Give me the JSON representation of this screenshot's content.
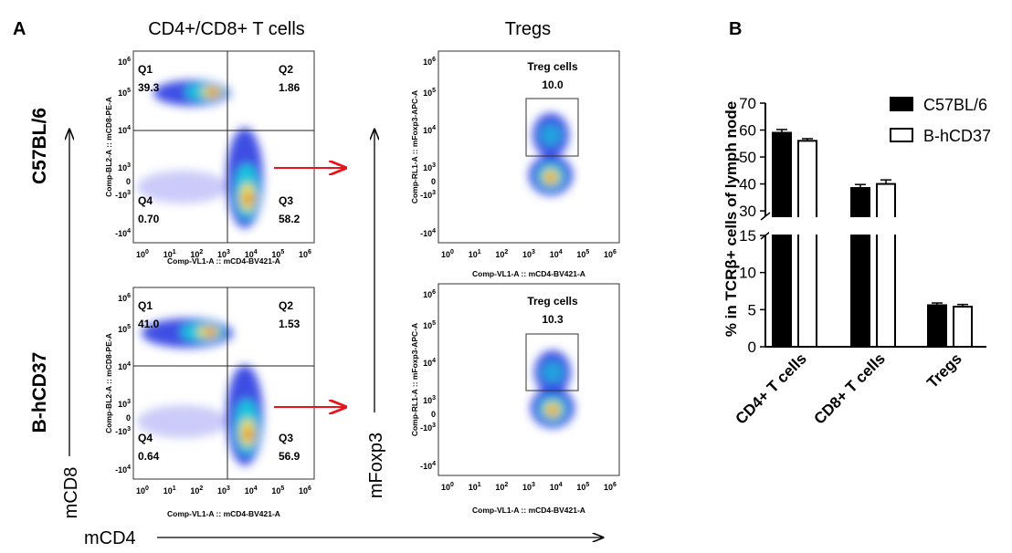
{
  "panel_labels": {
    "a": "A",
    "b": "B"
  },
  "headers": {
    "cd4cd8": "CD4+/CD8+ T cells",
    "tregs": "Tregs"
  },
  "row_labels": {
    "top": "C57BL/6",
    "bottom": "B-hCD37"
  },
  "big_axes": {
    "y_cd8": "mCD8",
    "y_foxp3": "mFoxp3",
    "x_cd4": "mCD4"
  },
  "flow": {
    "xlabel": "Comp-VL1-A :: mCD4-BV421-A",
    "ylabel_cd8": "Comp-BL2-A :: mCD8-PE-A",
    "ylabel_foxp3": "Comp-RL1-A :: mFoxp3-APC-A",
    "x_ticks": [
      "10^0",
      "10^1",
      "10^2",
      "10^3",
      "10^4",
      "10^5",
      "10^6"
    ],
    "y_ticks": [
      "10^6",
      "10^5",
      "10^4",
      "10^3",
      "0",
      "-10^3",
      "-10^4"
    ],
    "quadrant_plots": [
      {
        "row": "C57BL/6",
        "quadrants": [
          {
            "name": "Q1",
            "value": "39.3"
          },
          {
            "name": "Q2",
            "value": "1.86"
          },
          {
            "name": "Q4",
            "value": "0.70"
          },
          {
            "name": "Q3",
            "value": "58.2"
          }
        ]
      },
      {
        "row": "B-hCD37",
        "quadrants": [
          {
            "name": "Q1",
            "value": "41.0"
          },
          {
            "name": "Q2",
            "value": "1.53"
          },
          {
            "name": "Q4",
            "value": "0.64"
          },
          {
            "name": "Q3",
            "value": "56.9"
          }
        ]
      }
    ],
    "treg_plots": [
      {
        "row": "C57BL/6",
        "gate_label": "Treg cells",
        "value": "10.0"
      },
      {
        "row": "B-hCD37",
        "gate_label": "Treg cells",
        "value": "10.3"
      }
    ],
    "arrow_color": "#e8141c"
  },
  "chart_data": {
    "type": "bar",
    "categories": [
      "CD4+ T cells",
      "CD8+ T cells",
      "Tregs"
    ],
    "series": [
      {
        "name": "C57BL/6",
        "values": [
          59,
          38.5,
          5.6
        ],
        "error": [
          1.2,
          1.3,
          0.3
        ],
        "fill": "#000000"
      },
      {
        "name": "B-hCD37",
        "values": [
          56,
          40,
          5.4
        ],
        "error": [
          0.8,
          1.5,
          0.3
        ],
        "fill": "#ffffff"
      }
    ],
    "ylabel": "% in TCRβ+ cells of lymph node",
    "y_segments": [
      {
        "range": [
          0,
          15
        ],
        "ticks": [
          0,
          5,
          10,
          15
        ]
      },
      {
        "range": [
          28,
          70
        ],
        "ticks": [
          30,
          40,
          50,
          60,
          70
        ]
      }
    ],
    "legend_position": "top-right"
  }
}
